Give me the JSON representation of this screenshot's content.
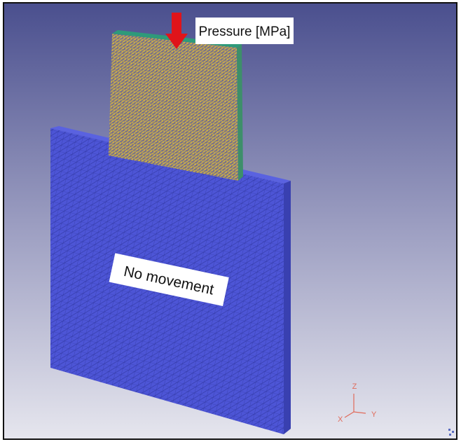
{
  "labels": {
    "pressure": "Pressure [MPa]",
    "support": "No movement"
  },
  "axes": {
    "z": "Z",
    "y": "Y",
    "x": "X"
  }
}
